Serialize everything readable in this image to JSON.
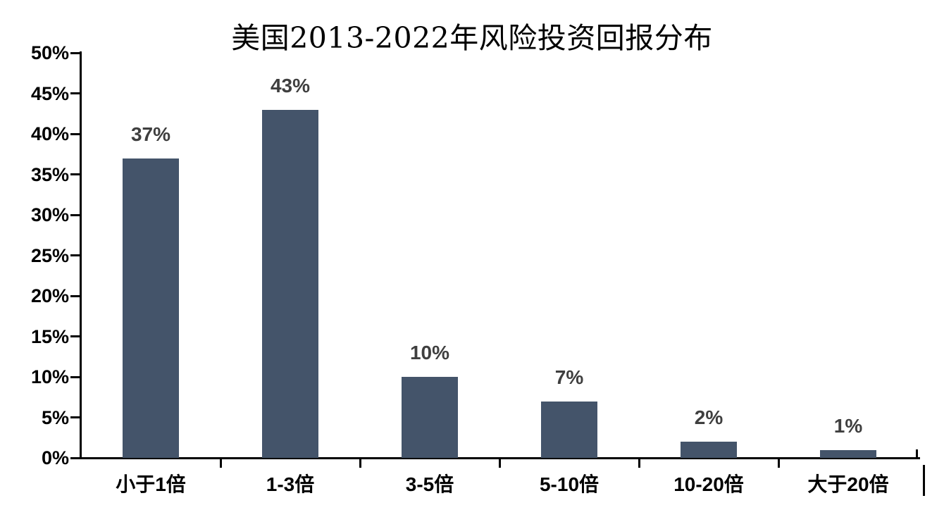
{
  "chart_data": {
    "type": "bar",
    "title": "美国2013-2022年风险投资回报分布",
    "categories": [
      "小于1倍",
      "1-3倍",
      "3-5倍",
      "5-10倍",
      "10-20倍",
      "大于20倍"
    ],
    "values": [
      37,
      43,
      10,
      7,
      2,
      1
    ],
    "value_labels": [
      "37%",
      "43%",
      "10%",
      "7%",
      "2%",
      "1%"
    ],
    "y_ticks": [
      "0%",
      "5%",
      "10%",
      "15%",
      "20%",
      "25%",
      "30%",
      "35%",
      "40%",
      "45%",
      "50%"
    ],
    "ylim": [
      0,
      50
    ],
    "y_tick_step": 5,
    "xlabel": "",
    "ylabel": "",
    "grid": false,
    "legend": "none",
    "bar_color": "#44546A",
    "value_label_color": "#3F3F3F",
    "axis_color": "#000000",
    "tick_label_color": "#000000",
    "background": "#FFFFFF"
  }
}
